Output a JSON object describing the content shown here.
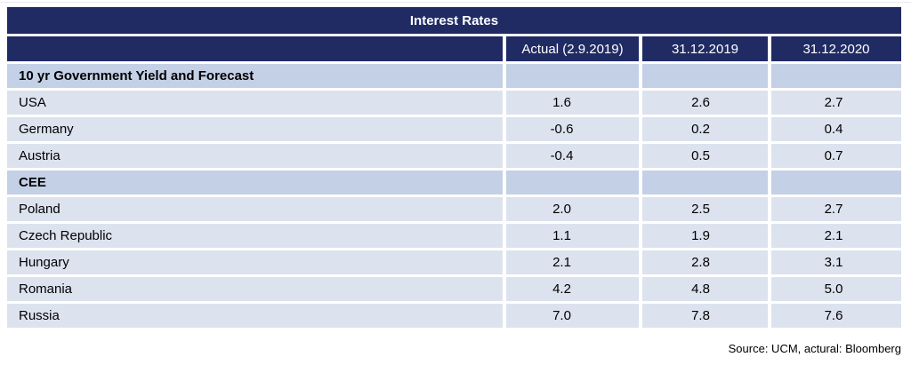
{
  "page": {
    "source_note": "Source: UCM, actural: Bloomberg"
  },
  "colors": {
    "navy": "#202b64",
    "section_bg": "#c4d0e6",
    "row_bg": "#dce3ef",
    "faint_line": "#e9eaf2",
    "header_text": "#ffffff",
    "body_text": "#000000"
  },
  "chart_data": {
    "type": "table",
    "title": "Interest Rates",
    "columns": [
      "",
      "Actual (2.9.2019)",
      "31.12.2019",
      "31.12.2020"
    ],
    "rows": [
      {
        "label": "10 yr Government Yield and Forecast",
        "type": "section",
        "values": [
          "",
          "",
          ""
        ]
      },
      {
        "label": "USA",
        "type": "data",
        "values": [
          "1.6",
          "2.6",
          "2.7"
        ]
      },
      {
        "label": "Germany",
        "type": "data",
        "values": [
          "-0.6",
          "0.2",
          "0.4"
        ]
      },
      {
        "label": "Austria",
        "type": "data",
        "values": [
          "-0.4",
          "0.5",
          "0.7"
        ]
      },
      {
        "label": "CEE",
        "type": "section",
        "values": [
          "",
          "",
          ""
        ]
      },
      {
        "label": "Poland",
        "type": "data",
        "values": [
          "2.0",
          "2.5",
          "2.7"
        ]
      },
      {
        "label": "Czech Republic",
        "type": "data",
        "values": [
          "1.1",
          "1.9",
          "2.1"
        ]
      },
      {
        "label": "Hungary",
        "type": "data",
        "values": [
          "2.1",
          "2.8",
          "3.1"
        ]
      },
      {
        "label": "Romania",
        "type": "data",
        "values": [
          "4.2",
          "4.8",
          "5.0"
        ]
      },
      {
        "label": "Russia",
        "type": "data",
        "values": [
          "7.0",
          "7.8",
          "7.6"
        ]
      }
    ],
    "layout": {
      "legend": "none",
      "grid": "white row/column gutters",
      "header_position": "top"
    }
  }
}
